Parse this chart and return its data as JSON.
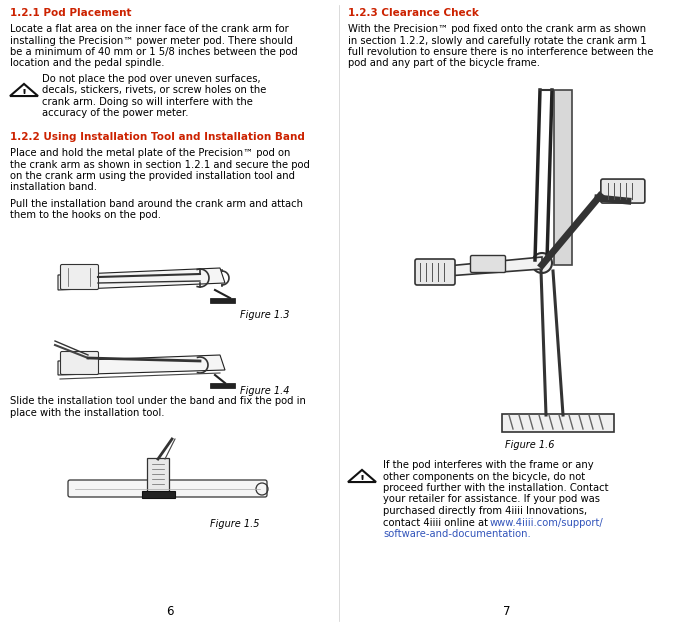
{
  "bg_color": "#ffffff",
  "text_color": "#000000",
  "heading_color": "#cc2200",
  "link_color": "#3355bb",
  "left_page_num": "6",
  "right_page_num": "7",
  "h121": "1.2.1 Pod Placement",
  "b121_line1": "Locate a flat area on the inner face of the crank arm for",
  "b121_line2": "installing the Precision™ power meter pod. There should",
  "b121_line3": "be a minimum of 40 mm or 1 5/8 inches between the pod",
  "b121_line4": "location and the pedal spindle.",
  "w1_line1": "Do not place the pod over uneven surfaces,",
  "w1_line2": "decals, stickers, rivets, or screw holes on the",
  "w1_line3": "crank arm. Doing so will interfere with the",
  "w1_line4": "accuracy of the power meter.",
  "h122": "1.2.2 Using Installation Tool and Installation Band",
  "b122a_line1": "Place and hold the metal plate of the Precision™ pod on",
  "b122a_line2": "the crank arm as shown in section 1.2.1 and secure the pod",
  "b122a_line3": "on the crank arm using the provided installation tool and",
  "b122a_line4": "installation band.",
  "b122b_line1": "Pull the installation band around the crank arm and attach",
  "b122b_line2": "them to the hooks on the pod.",
  "fig3": "Figure 1.3",
  "fig4": "Figure 1.4",
  "b122c_line1": "Slide the installation tool under the band and fix the pod in",
  "b122c_line2": "place with the installation tool.",
  "fig5": "Figure 1.5",
  "h123": "1.2.3 Clearance Check",
  "b123_line1": "With the Precision™ pod fixed onto the crank arm as shown",
  "b123_line2": "in section 1.2.2, slowly and carefully rotate the crank arm 1",
  "b123_line3": "full revolution to ensure there is no interference between the",
  "b123_line4": "pod and any part of the bicycle frame.",
  "fig6": "Figure 1.6",
  "w2_line1": "If the pod interferes with the frame or any",
  "w2_line2": "other components on the bicycle, do not",
  "w2_line3": "proceed further with the installation. Contact",
  "w2_line4": "your retailer for assistance. If your pod was",
  "w2_line5": "purchased directly from 4iiii Innovations,",
  "w2_line6": "contact 4iiii online at ",
  "w2_link1": "www.4iiii.com/support/",
  "w2_link2": "software-and-documentation."
}
